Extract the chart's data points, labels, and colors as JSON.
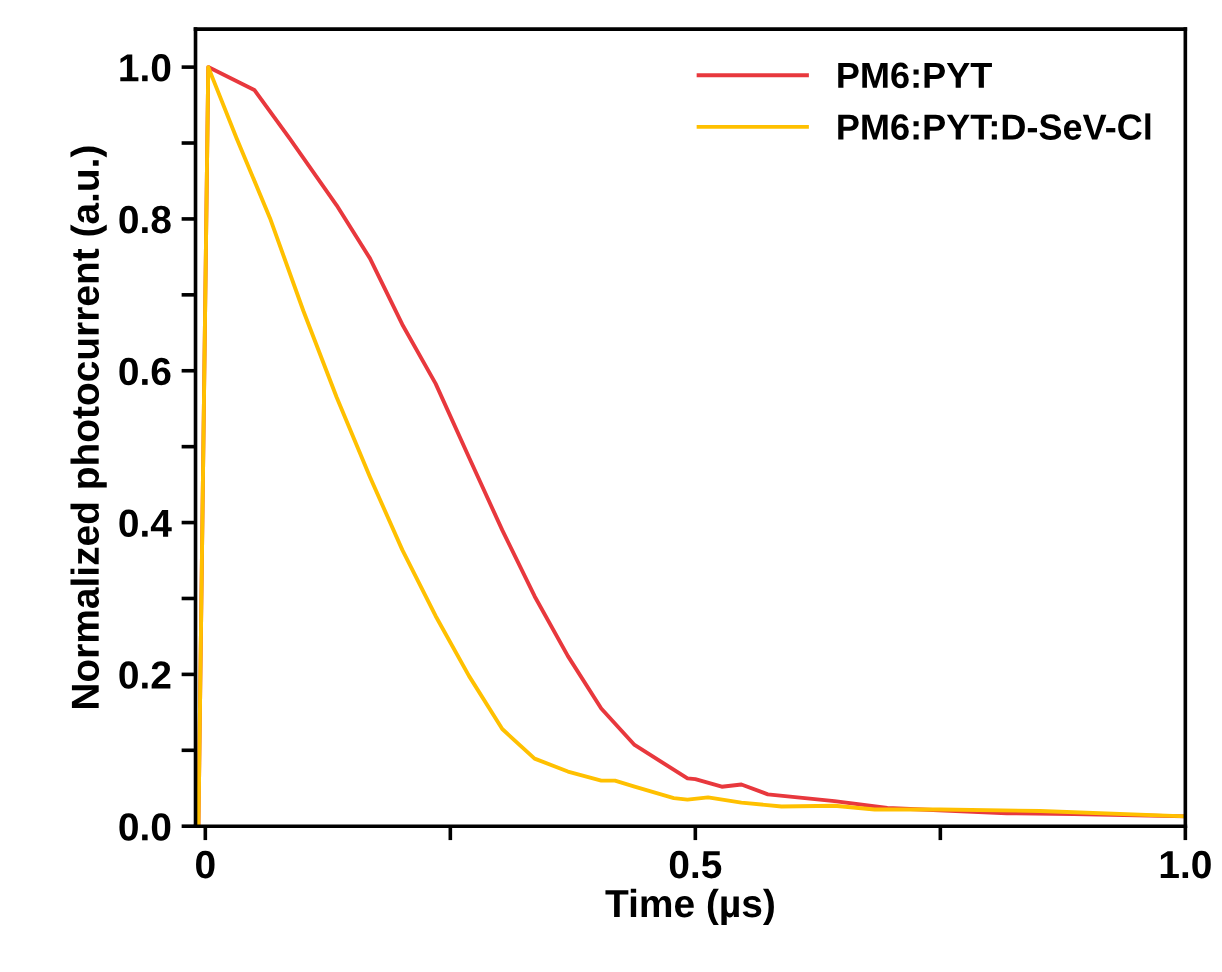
{
  "chart_data": {
    "type": "line",
    "xlabel": "Time (µs)",
    "ylabel": "Normalized photocurrent (a.u.)",
    "xlim": [
      -0.01,
      1.0
    ],
    "ylim": [
      0,
      1.05
    ],
    "xticks": [
      {
        "value": 0,
        "label": "0"
      },
      {
        "value": 0.25,
        "label": null
      },
      0.5,
      {
        "value": 0.75,
        "label": null
      },
      {
        "value": 1.0,
        "label": "1.0"
      }
    ],
    "yticks": [
      {
        "value": 0,
        "label": "0.0"
      },
      {
        "value": 0.1,
        "label": null
      },
      0.2,
      {
        "value": 0.3,
        "label": null
      },
      0.4,
      {
        "value": 0.5,
        "label": null
      },
      0.6,
      {
        "value": 0.7,
        "label": null
      },
      0.8,
      {
        "value": 0.9,
        "label": null
      },
      {
        "value": 1.0,
        "label": "1.0"
      }
    ],
    "legend": "top right",
    "grid": false,
    "marker": "none",
    "line_style": "solid",
    "series": [
      {
        "name": "PM6:PYT",
        "color": "#e8383d",
        "x": [
          -0.007,
          0.003,
          0.05,
          0.086,
          0.134,
          0.168,
          0.201,
          0.235,
          0.269,
          0.303,
          0.336,
          0.37,
          0.404,
          0.438,
          0.492,
          0.5,
          0.527,
          0.547,
          0.574,
          0.642,
          0.696,
          0.818,
          0.886,
          1.0
        ],
        "values": [
          0,
          1.0,
          0.97,
          0.906,
          0.818,
          0.748,
          0.661,
          0.583,
          0.486,
          0.39,
          0.303,
          0.224,
          0.155,
          0.107,
          0.063,
          0.062,
          0.052,
          0.055,
          0.042,
          0.033,
          0.024,
          0.017,
          0.016,
          0.013
        ]
      },
      {
        "name": "PM6:PYT:D-SeV-Cl",
        "color": "#ffc000",
        "x": [
          -0.007,
          0.003,
          0.032,
          0.066,
          0.1,
          0.134,
          0.168,
          0.201,
          0.235,
          0.269,
          0.303,
          0.336,
          0.37,
          0.404,
          0.418,
          0.438,
          0.478,
          0.492,
          0.513,
          0.547,
          0.588,
          0.642,
          0.683,
          0.75,
          0.852,
          1.0
        ],
        "values": [
          0,
          1.0,
          0.906,
          0.801,
          0.679,
          0.565,
          0.46,
          0.364,
          0.277,
          0.198,
          0.128,
          0.089,
          0.072,
          0.06,
          0.06,
          0.052,
          0.037,
          0.035,
          0.038,
          0.031,
          0.026,
          0.027,
          0.022,
          0.022,
          0.02,
          0.013
        ]
      }
    ]
  }
}
